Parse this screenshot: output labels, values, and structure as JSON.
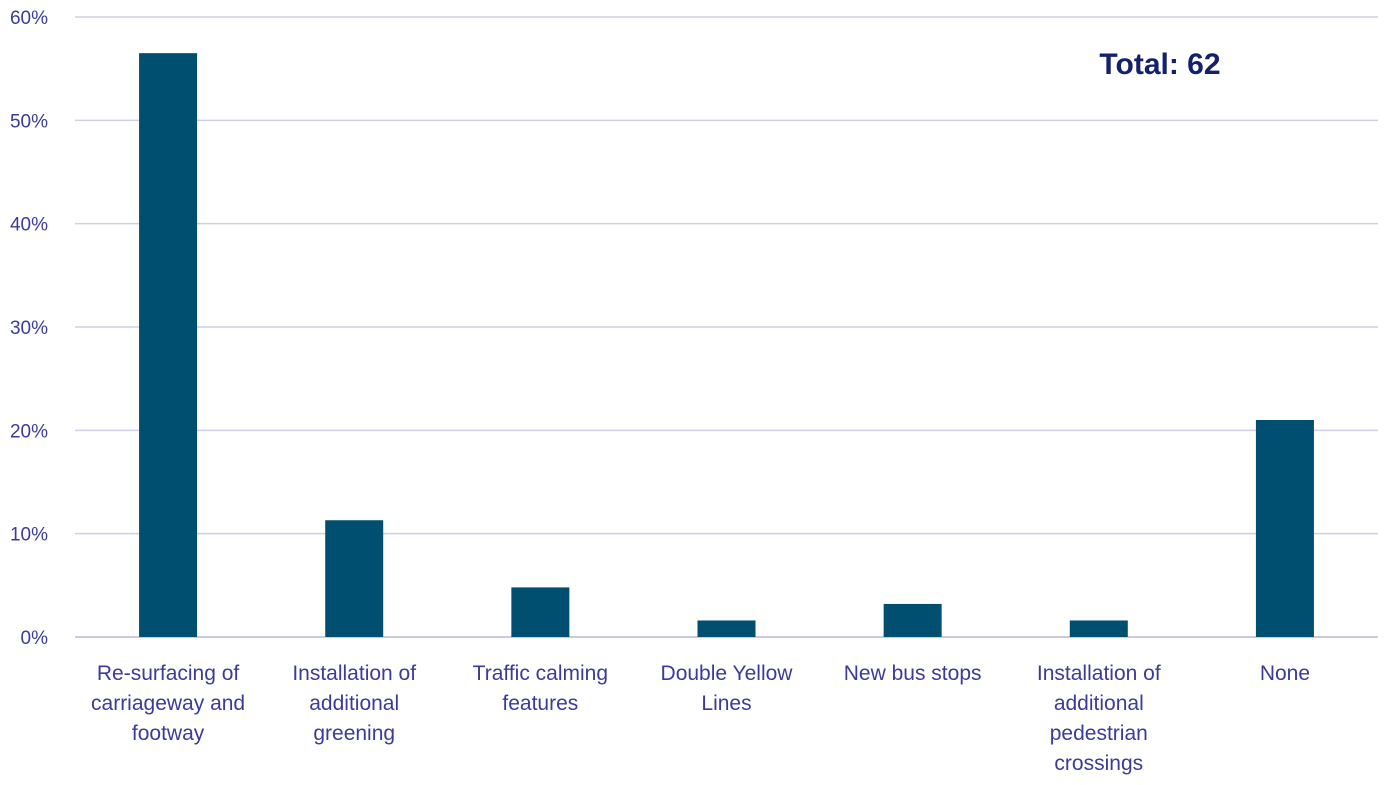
{
  "chart_data": {
    "type": "bar",
    "title": "",
    "xlabel": "",
    "ylabel": "",
    "categories": [
      "Re-surfacing of carriageway and footway",
      "Installation of additional greening",
      "Traffic calming features",
      "Double Yellow Lines",
      "New bus stops",
      "Installation of additional pedestrian crossings",
      "None"
    ],
    "category_lines": [
      [
        "Re-surfacing of",
        "carriageway and",
        "footway"
      ],
      [
        "Installation of",
        "additional",
        "greening"
      ],
      [
        "Traffic calming",
        "features"
      ],
      [
        "Double Yellow",
        "Lines"
      ],
      [
        "New bus stops"
      ],
      [
        "Installation of",
        "additional",
        "pedestrian",
        "crossings"
      ],
      [
        "None"
      ]
    ],
    "values": [
      56.5,
      11.3,
      4.8,
      1.6,
      3.2,
      1.6,
      21.0
    ],
    "ylim": [
      0,
      60
    ],
    "yticks": [
      0,
      10,
      20,
      30,
      40,
      50,
      60
    ],
    "ytick_labels": [
      "0%",
      "10%",
      "20%",
      "30%",
      "40%",
      "50%",
      "60%"
    ],
    "grid": true,
    "legend": "none",
    "bar_color": "#004f70",
    "annotation": "Total: 62"
  }
}
